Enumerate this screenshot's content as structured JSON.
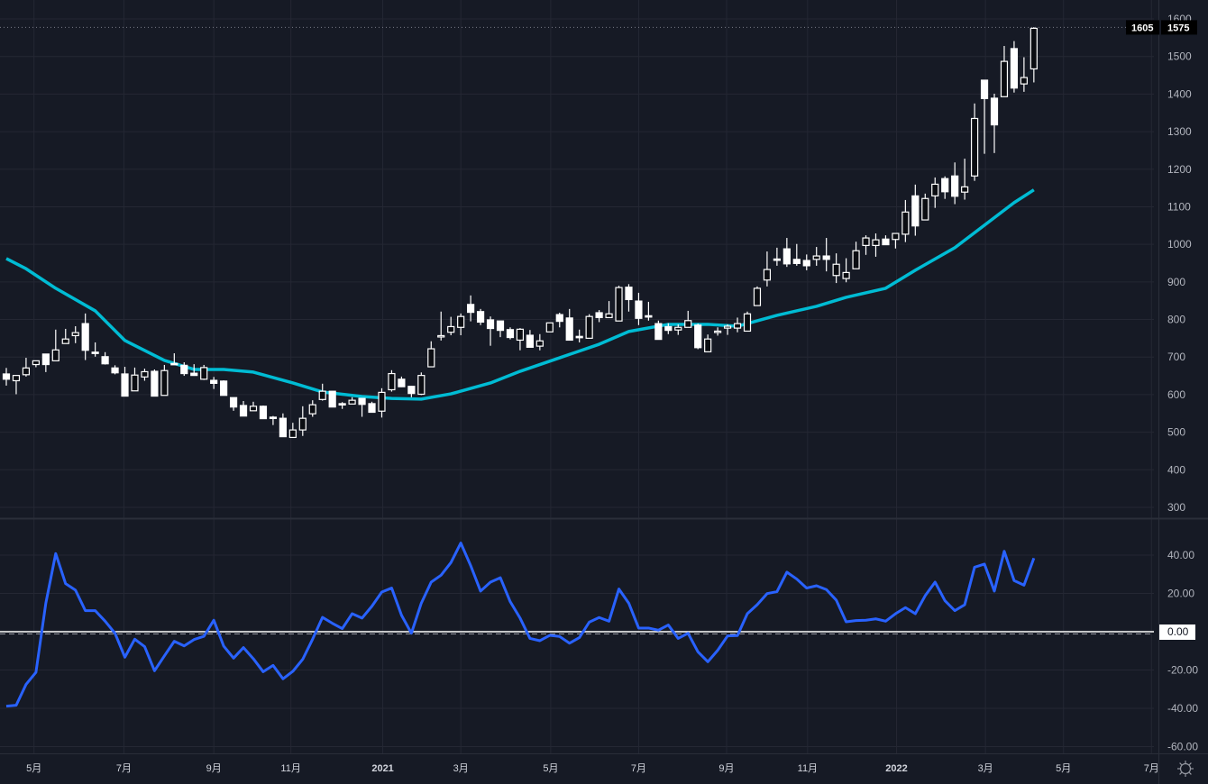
{
  "chart_data": [
    {
      "type": "candlestick",
      "title": "",
      "ylim": [
        280,
        1620
      ],
      "price_ticks": [
        300,
        400,
        500,
        600,
        700,
        800,
        900,
        1000,
        1100,
        1200,
        1300,
        1400,
        1500,
        1600
      ],
      "last_price_label": "1575",
      "crosshair_price_label": "1605",
      "candles_ohlc": [
        [
          655,
          671,
          624,
          641
        ],
        [
          637,
          651,
          601,
          651
        ],
        [
          653,
          698,
          648,
          671
        ],
        [
          680,
          690,
          673,
          690
        ],
        [
          708,
          708,
          660,
          680
        ],
        [
          690,
          773,
          690,
          719
        ],
        [
          736,
          775,
          736,
          748
        ],
        [
          757,
          782,
          737,
          765
        ],
        [
          789,
          816,
          692,
          718
        ],
        [
          713,
          739,
          701,
          711
        ],
        [
          701,
          713,
          680,
          682
        ],
        [
          671,
          678,
          654,
          658
        ],
        [
          655,
          674,
          596,
          596
        ],
        [
          610,
          672,
          610,
          652
        ],
        [
          647,
          669,
          637,
          661
        ],
        [
          662,
          667,
          596,
          596
        ],
        [
          598,
          679,
          598,
          664
        ],
        [
          683,
          710,
          681,
          681
        ],
        [
          678,
          686,
          650,
          656
        ],
        [
          657,
          681,
          650,
          651
        ],
        [
          641,
          679,
          639,
          672
        ],
        [
          638,
          647,
          615,
          630
        ],
        [
          636,
          638,
          598,
          598
        ],
        [
          592,
          592,
          557,
          567
        ],
        [
          571,
          583,
          543,
          543
        ],
        [
          557,
          581,
          557,
          569
        ],
        [
          569,
          571,
          536,
          536
        ],
        [
          540,
          543,
          519,
          538
        ],
        [
          537,
          550,
          488,
          488
        ],
        [
          486,
          525,
          486,
          506
        ],
        [
          506,
          569,
          490,
          537
        ],
        [
          549,
          585,
          541,
          573
        ],
        [
          587,
          629,
          584,
          609
        ],
        [
          609,
          609,
          567,
          567
        ],
        [
          576,
          580,
          562,
          574
        ],
        [
          575,
          593,
          575,
          585
        ],
        [
          590,
          590,
          541,
          574
        ],
        [
          576,
          581,
          553,
          553
        ],
        [
          556,
          617,
          539,
          606
        ],
        [
          613,
          665,
          608,
          656
        ],
        [
          641,
          648,
          620,
          621
        ],
        [
          622,
          623,
          593,
          603
        ],
        [
          601,
          659,
          599,
          651
        ],
        [
          674,
          742,
          674,
          722
        ],
        [
          755,
          821,
          744,
          757
        ],
        [
          766,
          807,
          758,
          781
        ],
        [
          779,
          816,
          758,
          808
        ],
        [
          840,
          864,
          795,
          819
        ],
        [
          821,
          828,
          785,
          793
        ],
        [
          799,
          808,
          730,
          776
        ],
        [
          796,
          796,
          753,
          771
        ],
        [
          773,
          779,
          747,
          752
        ],
        [
          745,
          777,
          718,
          774
        ],
        [
          758,
          772,
          726,
          726
        ],
        [
          729,
          761,
          718,
          743
        ],
        [
          767,
          791,
          767,
          791
        ],
        [
          813,
          818,
          779,
          795
        ],
        [
          804,
          828,
          745,
          745
        ],
        [
          755,
          773,
          739,
          753
        ],
        [
          750,
          814,
          749,
          808
        ],
        [
          818,
          825,
          793,
          805
        ],
        [
          805,
          849,
          805,
          815
        ],
        [
          796,
          890,
          796,
          885
        ],
        [
          886,
          894,
          821,
          853
        ],
        [
          849,
          871,
          785,
          803
        ],
        [
          810,
          847,
          797,
          808
        ],
        [
          789,
          797,
          747,
          747
        ],
        [
          781,
          790,
          761,
          771
        ],
        [
          772,
          787,
          759,
          779
        ],
        [
          779,
          823,
          779,
          797
        ],
        [
          785,
          789,
          721,
          725
        ],
        [
          714,
          760,
          714,
          748
        ],
        [
          767,
          779,
          757,
          769
        ],
        [
          777,
          787,
          759,
          782
        ],
        [
          777,
          805,
          766,
          789
        ],
        [
          769,
          821,
          769,
          815
        ],
        [
          837,
          888,
          837,
          883
        ],
        [
          905,
          981,
          888,
          933
        ],
        [
          961,
          991,
          943,
          960
        ],
        [
          988,
          1017,
          940,
          948
        ],
        [
          960,
          1001,
          943,
          949
        ],
        [
          957,
          973,
          931,
          943
        ],
        [
          960,
          993,
          943,
          969
        ],
        [
          969,
          1017,
          928,
          960
        ],
        [
          917,
          976,
          897,
          947
        ],
        [
          909,
          963,
          899,
          925
        ],
        [
          935,
          1007,
          935,
          983
        ],
        [
          997,
          1024,
          972,
          1017
        ],
        [
          997,
          1029,
          967,
          1012
        ],
        [
          1014,
          1024,
          998,
          999
        ],
        [
          1013,
          1029,
          989,
          1029
        ],
        [
          1027,
          1118,
          1006,
          1086
        ],
        [
          1129,
          1159,
          1023,
          1049
        ],
        [
          1065,
          1135,
          1065,
          1122
        ],
        [
          1129,
          1178,
          1097,
          1160
        ],
        [
          1175,
          1181,
          1121,
          1140
        ],
        [
          1182,
          1218,
          1107,
          1128
        ],
        [
          1139,
          1228,
          1119,
          1153
        ],
        [
          1182,
          1375,
          1169,
          1335
        ],
        [
          1437,
          1437,
          1241,
          1388
        ],
        [
          1389,
          1401,
          1243,
          1318
        ],
        [
          1393,
          1528,
          1393,
          1487
        ],
        [
          1521,
          1541,
          1404,
          1416
        ],
        [
          1427,
          1498,
          1406,
          1444
        ],
        [
          1467,
          1578,
          1431,
          1575
        ]
      ],
      "moving_average": [
        [
          0,
          962
        ],
        [
          2,
          935
        ],
        [
          5,
          883
        ],
        [
          9,
          823
        ],
        [
          12,
          744
        ],
        [
          16,
          691
        ],
        [
          19,
          667
        ],
        [
          22,
          667
        ],
        [
          25,
          660
        ],
        [
          29,
          631
        ],
        [
          32,
          607
        ],
        [
          36,
          595
        ],
        [
          39,
          590
        ],
        [
          42,
          588
        ],
        [
          45,
          602
        ],
        [
          49,
          631
        ],
        [
          52,
          662
        ],
        [
          56,
          698
        ],
        [
          60,
          734
        ],
        [
          63,
          768
        ],
        [
          67,
          787
        ],
        [
          71,
          787
        ],
        [
          74,
          782
        ],
        [
          78,
          811
        ],
        [
          82,
          835
        ],
        [
          85,
          859
        ],
        [
          89,
          883
        ],
        [
          92,
          931
        ],
        [
          96,
          991
        ],
        [
          99,
          1051
        ],
        [
          102,
          1111
        ],
        [
          104,
          1145
        ]
      ],
      "ma_color": "#00bcd4",
      "up_candle": "hollow",
      "down_candle": "filled-white"
    },
    {
      "type": "line",
      "title": "",
      "ylim": [
        -64,
        50
      ],
      "y_ticks": [
        "40.00",
        "20.00",
        "0.00",
        "-20.00",
        "-40.00",
        "-60.00"
      ],
      "y_tick_values": [
        40,
        20,
        0,
        -20,
        -40,
        -60
      ],
      "zero_label": "0.00",
      "line_color": "#2962ff",
      "values": [
        -38.9,
        -38.4,
        -27.5,
        -21.2,
        14.9,
        40.8,
        25.1,
        21.7,
        11,
        11,
        5.5,
        -0.8,
        -13.3,
        -3.9,
        -7.8,
        -20.4,
        -12.6,
        -5,
        -7.4,
        -4.1,
        -2.4,
        6,
        -7.5,
        -13.8,
        -8.3,
        -14.1,
        -20.9,
        -17.6,
        -24.6,
        -20.7,
        -14.4,
        -3.9,
        7.5,
        4.4,
        1.6,
        9.4,
        7.1,
        13.3,
        20.7,
        22.8,
        8.6,
        -0.8,
        14.9,
        25.9,
        29.5,
        36.1,
        46.3,
        34.5,
        21.2,
        25.9,
        28.2,
        15.7,
        7.1,
        -3.5,
        -4.7,
        -1.9,
        -2.5,
        -6,
        -3.1,
        5,
        7.4,
        5.5,
        22.3,
        14.9,
        1.9,
        1.9,
        0.8,
        3.5,
        -3.5,
        -0.8,
        -10.5,
        -15.7,
        -9.7,
        -2.2,
        -2,
        9.4,
        14.1,
        19.9,
        20.9,
        31.1,
        27.5,
        22.8,
        24,
        22,
        16.5,
        5.2,
        5.8,
        6,
        6.7,
        5.5,
        9.4,
        12.6,
        9.4,
        18.8,
        25.9,
        16.2,
        11,
        14.1,
        33.7,
        35.3,
        21.2,
        42,
        26.7,
        24.3,
        38.4
      ]
    }
  ],
  "time_axis": {
    "labels": [
      "5月",
      "7月",
      "9月",
      "11月",
      "2021",
      "3月",
      "5月",
      "7月",
      "9月",
      "11月",
      "2022",
      "3月",
      "5月",
      "7月"
    ],
    "label_index": [
      2.8,
      11.9,
      21,
      28.8,
      38.1,
      46,
      55.1,
      64,
      72.9,
      81.1,
      90.1,
      99.1,
      107,
      115.9
    ],
    "bold": [
      false,
      false,
      false,
      false,
      true,
      false,
      false,
      false,
      false,
      false,
      true,
      false,
      false,
      false
    ]
  },
  "colors": {
    "background": "#161a25",
    "grid": "#242733",
    "axis_text": "#b2b5be"
  }
}
